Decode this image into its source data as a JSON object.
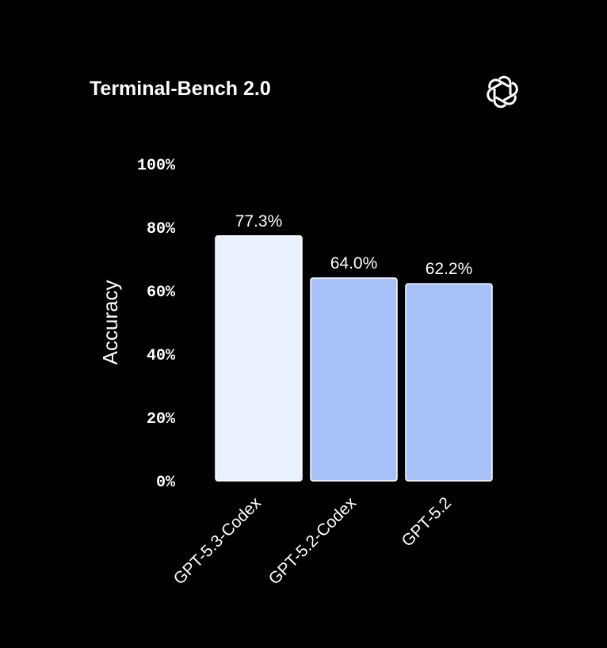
{
  "chart_data": {
    "type": "bar",
    "title": "Terminal-Bench 2.0",
    "ylabel": "Accuracy",
    "xlabel": "",
    "categories": [
      "GPT-5.3-Codex",
      "GPT-5.2-Codex",
      "GPT-5.2"
    ],
    "values": [
      77.3,
      64.0,
      62.2
    ],
    "data_labels": [
      "77.3%",
      "64.0%",
      "62.2%"
    ],
    "colors": [
      "#EAF1FE",
      "#A7C1F8",
      "#A7C1F8"
    ],
    "ylim": [
      0,
      100
    ],
    "yticks": [
      0,
      20,
      40,
      60,
      80,
      100
    ],
    "ytick_labels": [
      "0%",
      "20%",
      "40%",
      "60%",
      "80%",
      "100%"
    ],
    "grid": false,
    "background": "#000000"
  },
  "logo": {
    "name": "openai-logo-icon"
  }
}
